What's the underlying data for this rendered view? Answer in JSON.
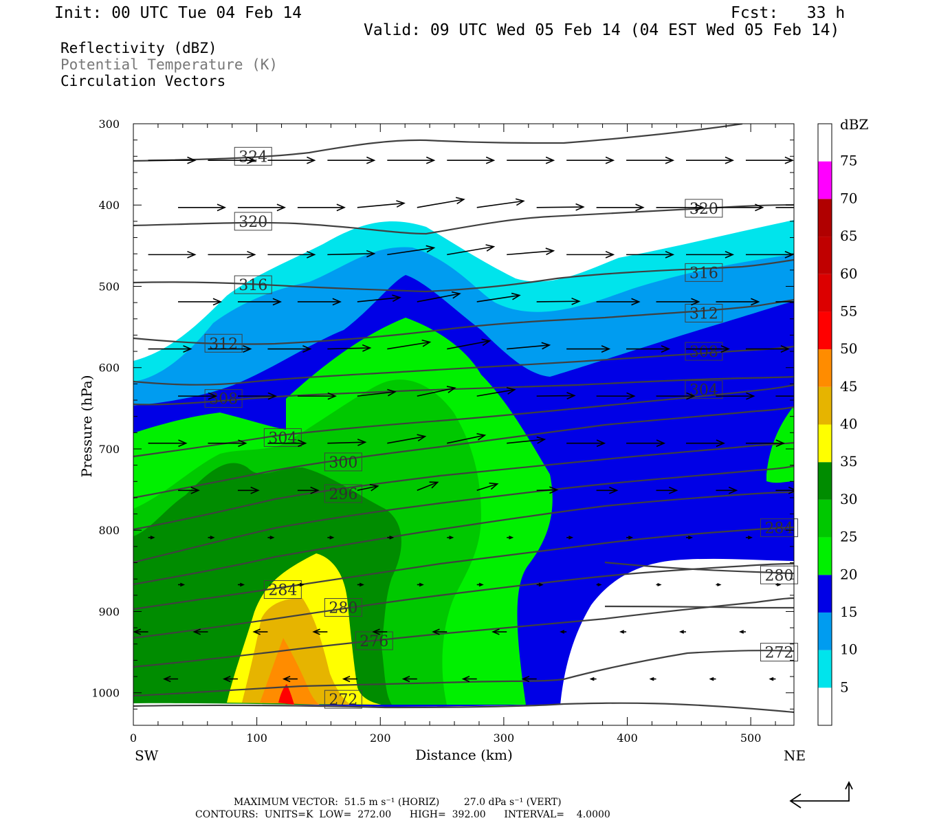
{
  "header": {
    "init": "Init: 00 UTC Tue 04 Feb 14",
    "fcst": "Fcst:   33 h",
    "valid": "Valid: 09 UTC Wed 05 Feb 14 (04 EST Wed 05 Feb 14)"
  },
  "legend": {
    "line1": "Reflectivity (dBZ)",
    "line2": "Potential Temperature (K)",
    "line3": "Circulation Vectors"
  },
  "colors": {
    "shade_5": "#00e4ec",
    "shade_10": "#009cf0",
    "shade_15": "#0000e6",
    "shade_20": "#00f000",
    "shade_25": "#00c800",
    "shade_30": "#008c00",
    "shade_35": "#ffff00",
    "shade_40": "#e6b400",
    "shade_45": "#ff8c00",
    "shade_50": "#ff0000",
    "shade_55": "#dc0000",
    "shade_60": "#c00000",
    "shade_65": "#b00000",
    "shade_70": "#ff00ff",
    "shade_75": "#9955cc",
    "contour": "#404040"
  },
  "chart_data": {
    "type": "cross-section",
    "xlabel": "Distance (km)",
    "ylabel": "Pressure (hPa)",
    "x_ticks": [
      "0",
      "100",
      "200",
      "300",
      "400",
      "500"
    ],
    "y_ticks": [
      "300",
      "400",
      "500",
      "600",
      "700",
      "800",
      "900",
      "1000"
    ],
    "xlim": [
      0,
      535
    ],
    "ylim": [
      1040,
      300
    ],
    "left_label": "SW",
    "right_label": "NE",
    "colorbar": {
      "unit": "dBZ",
      "levels": [
        "5",
        "10",
        "15",
        "20",
        "25",
        "30",
        "35",
        "40",
        "45",
        "50",
        "55",
        "60",
        "65",
        "70",
        "75"
      ]
    },
    "theta_labels": [
      {
        "value": "324",
        "x": 97,
        "p": 340
      },
      {
        "value": "320",
        "x": 97,
        "p": 420
      },
      {
        "value": "316",
        "x": 97,
        "p": 498
      },
      {
        "value": "312",
        "x": 73,
        "p": 570
      },
      {
        "value": "308",
        "x": 73,
        "p": 638
      },
      {
        "value": "304",
        "x": 121,
        "p": 686
      },
      {
        "value": "300",
        "x": 170,
        "p": 716
      },
      {
        "value": "296",
        "x": 170,
        "p": 755
      },
      {
        "value": "284",
        "x": 121,
        "p": 873
      },
      {
        "value": "280",
        "x": 170,
        "p": 895
      },
      {
        "value": "276",
        "x": 195,
        "p": 936
      },
      {
        "value": "272",
        "x": 170,
        "p": 1008
      },
      {
        "value": "320",
        "x": 462,
        "p": 404
      },
      {
        "value": "316",
        "x": 462,
        "p": 483
      },
      {
        "value": "312",
        "x": 462,
        "p": 533
      },
      {
        "value": "308",
        "x": 462,
        "p": 580
      },
      {
        "value": "304",
        "x": 462,
        "p": 627
      },
      {
        "value": "284",
        "x": 523,
        "p": 797
      },
      {
        "value": "280",
        "x": 523,
        "p": 855
      },
      {
        "value": "272",
        "x": 523,
        "p": 950
      }
    ]
  },
  "footer": {
    "line1": "MAXIMUM VECTOR:  51.5 m s⁻¹ (HORIZ)        27.0 dPa s⁻¹ (VERT)",
    "line2": "CONTOURS:  UNITS=K  LOW=  272.00      HIGH=  392.00      INTERVAL=    4.0000"
  }
}
